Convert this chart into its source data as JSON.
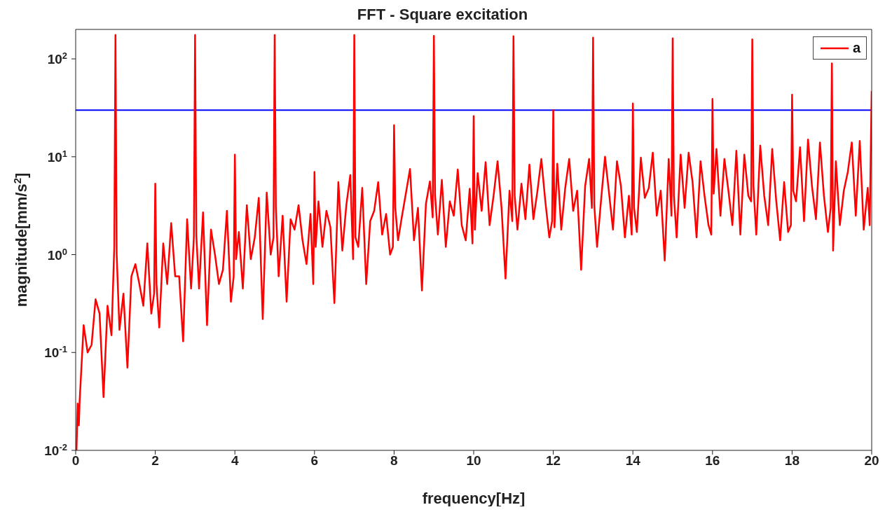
{
  "chart_data": {
    "type": "line",
    "title": "FFT - Square excitation",
    "xlabel": "frequency[Hz]",
    "ylabel": "magnitude[mm/s$^{2}$]",
    "log": "y",
    "legend": "top right",
    "grid": false,
    "x": [
      0.02,
      0.05,
      0.08,
      0.1,
      0.2,
      0.3,
      0.4,
      0.5,
      0.6,
      0.7,
      0.8,
      0.9,
      0.97,
      1.0,
      1.03,
      1.1,
      1.2,
      1.3,
      1.4,
      1.5,
      1.6,
      1.7,
      1.8,
      1.9,
      1.97,
      2.0,
      2.03,
      2.1,
      2.2,
      2.3,
      2.4,
      2.5,
      2.6,
      2.7,
      2.8,
      2.9,
      2.97,
      3.0,
      3.03,
      3.1,
      3.2,
      3.3,
      3.4,
      3.5,
      3.6,
      3.7,
      3.8,
      3.9,
      3.97,
      4.0,
      4.03,
      4.1,
      4.2,
      4.3,
      4.4,
      4.5,
      4.6,
      4.7,
      4.8,
      4.9,
      4.97,
      5.0,
      5.03,
      5.1,
      5.2,
      5.3,
      5.4,
      5.5,
      5.6,
      5.7,
      5.8,
      5.9,
      5.97,
      6.0,
      6.03,
      6.1,
      6.2,
      6.3,
      6.4,
      6.5,
      6.6,
      6.7,
      6.8,
      6.9,
      6.97,
      7.0,
      7.03,
      7.1,
      7.2,
      7.3,
      7.4,
      7.5,
      7.6,
      7.7,
      7.8,
      7.9,
      7.97,
      8.0,
      8.03,
      8.1,
      8.2,
      8.3,
      8.4,
      8.5,
      8.6,
      8.7,
      8.8,
      8.9,
      8.97,
      9.0,
      9.03,
      9.1,
      9.2,
      9.3,
      9.4,
      9.5,
      9.6,
      9.7,
      9.8,
      9.9,
      9.97,
      10.0,
      10.03,
      10.1,
      10.2,
      10.3,
      10.4,
      10.5,
      10.6,
      10.7,
      10.8,
      10.9,
      10.97,
      11.0,
      11.03,
      11.1,
      11.2,
      11.3,
      11.4,
      11.5,
      11.6,
      11.7,
      11.8,
      11.9,
      11.97,
      12.0,
      12.03,
      12.1,
      12.2,
      12.3,
      12.4,
      12.5,
      12.6,
      12.7,
      12.8,
      12.9,
      12.97,
      13.0,
      13.03,
      13.1,
      13.2,
      13.3,
      13.4,
      13.5,
      13.6,
      13.7,
      13.8,
      13.9,
      13.97,
      14.0,
      14.03,
      14.1,
      14.2,
      14.3,
      14.4,
      14.5,
      14.6,
      14.7,
      14.8,
      14.9,
      14.97,
      15.0,
      15.03,
      15.1,
      15.2,
      15.3,
      15.4,
      15.5,
      15.6,
      15.7,
      15.8,
      15.9,
      15.97,
      16.0,
      16.03,
      16.1,
      16.2,
      16.3,
      16.4,
      16.5,
      16.6,
      16.7,
      16.8,
      16.9,
      16.97,
      17.0,
      17.03,
      17.1,
      17.2,
      17.3,
      17.4,
      17.5,
      17.6,
      17.7,
      17.8,
      17.9,
      17.97,
      18.0,
      18.03,
      18.1,
      18.2,
      18.3,
      18.4,
      18.5,
      18.6,
      18.7,
      18.8,
      18.9,
      18.97,
      19.0,
      19.03,
      19.1,
      19.2,
      19.3,
      19.4,
      19.5,
      19.6,
      19.7,
      19.8,
      19.9,
      19.95,
      20.0
    ],
    "series": [
      {
        "name": "a",
        "color": "#ff0000",
        "values": [
          0.01,
          0.03,
          0.018,
          0.032,
          0.19,
          0.1,
          0.12,
          0.35,
          0.25,
          0.035,
          0.3,
          0.15,
          1.2,
          175,
          1.0,
          0.17,
          0.4,
          0.07,
          0.6,
          0.8,
          0.5,
          0.3,
          1.3,
          0.25,
          0.4,
          5.3,
          0.5,
          0.18,
          1.3,
          0.5,
          2.1,
          0.6,
          0.6,
          0.13,
          2.3,
          0.45,
          1.5,
          175,
          1.6,
          0.45,
          2.7,
          0.19,
          1.8,
          1.0,
          0.5,
          0.7,
          2.8,
          0.33,
          0.6,
          10.5,
          0.9,
          1.7,
          0.45,
          3.2,
          0.9,
          1.5,
          3.8,
          0.22,
          4.3,
          1.0,
          1.5,
          175,
          3.0,
          0.6,
          2.5,
          0.33,
          2.3,
          1.8,
          3.2,
          1.4,
          0.8,
          2.6,
          0.5,
          7,
          1.2,
          3.5,
          1.2,
          2.8,
          1.9,
          0.32,
          5.5,
          1.1,
          3.2,
          6.5,
          0.9,
          175,
          1.5,
          1.2,
          4.8,
          0.5,
          2.2,
          2.8,
          5.5,
          1.6,
          2.6,
          1.0,
          1.2,
          21,
          3.0,
          1.4,
          2.5,
          4.3,
          7.5,
          1.4,
          3.0,
          0.43,
          3.3,
          5.6,
          2.4,
          172,
          4.0,
          1.6,
          5.8,
          1.2,
          3.5,
          2.5,
          7.4,
          2.0,
          1.4,
          4.7,
          1.3,
          26,
          1.8,
          6.8,
          2.8,
          8.8,
          2.0,
          4.0,
          9.0,
          3.0,
          0.57,
          4.5,
          2.2,
          170,
          4.0,
          1.8,
          5.3,
          2.3,
          8.3,
          2.3,
          4.4,
          9.5,
          3.5,
          1.5,
          2.2,
          30,
          1.9,
          8.5,
          1.8,
          4.8,
          9.5,
          2.8,
          4.5,
          0.7,
          5.0,
          9.5,
          3.0,
          165,
          3.2,
          1.2,
          3.6,
          10,
          4.3,
          1.8,
          9.0,
          5.0,
          1.5,
          4.0,
          1.6,
          35,
          3.0,
          1.7,
          9.8,
          3.8,
          4.8,
          11,
          2.5,
          4.5,
          0.87,
          9.5,
          2.5,
          162,
          4.0,
          1.5,
          10.5,
          3.0,
          11,
          5.5,
          1.5,
          9.0,
          4.0,
          2.0,
          1.6,
          39,
          4.2,
          12,
          2.5,
          9.5,
          4.5,
          2.0,
          11.5,
          1.6,
          10.5,
          4.0,
          3.5,
          158,
          5.0,
          1.6,
          13,
          4.0,
          2.0,
          12,
          3.6,
          1.4,
          5.5,
          1.7,
          2.0,
          43,
          4.5,
          3.5,
          12.5,
          2.2,
          15,
          5.0,
          2.3,
          14,
          4.0,
          1.7,
          3.0,
          90,
          1.1,
          9.0,
          2.0,
          4.5,
          7.0,
          14,
          2.5,
          14.5,
          1.8,
          4.8,
          2.0,
          47
        ]
      }
    ],
    "ref_lines": [
      {
        "axis": "y",
        "value": 30,
        "color": "#0000ff"
      }
    ],
    "xlim": [
      0,
      20
    ],
    "xticks": [
      0,
      2,
      4,
      6,
      8,
      10,
      12,
      14,
      16,
      18,
      20
    ],
    "ylim": [
      0.01,
      200
    ],
    "yticks": [
      {
        "value": 0.01,
        "label": "10$^{-2}$"
      },
      {
        "value": 0.1,
        "label": "10$^{-1}$"
      },
      {
        "value": 1,
        "label": "10$^{0}$"
      },
      {
        "value": 10,
        "label": "10$^{1}$"
      },
      {
        "value": 100,
        "label": "10$^{2}$"
      }
    ]
  }
}
